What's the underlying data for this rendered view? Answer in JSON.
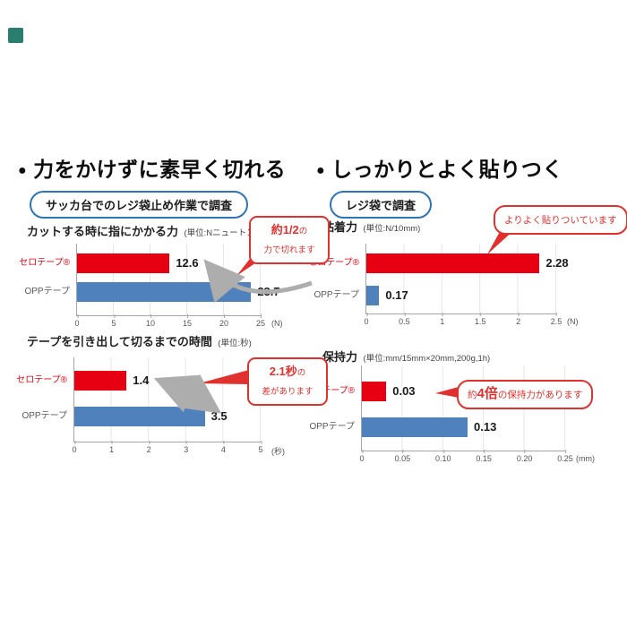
{
  "colors": {
    "red": "#e60012",
    "blue": "#4f81bd",
    "bubble_red": "#e0312e",
    "badge_border": "#2e75b6",
    "arrow_gray": "#adadad",
    "corner_teal": "#2a7e70"
  },
  "sections": [
    {
      "bullet": "●",
      "heading": "力をかけずに素早く切れる",
      "badge": "サッカ台でのレジ袋止め作業で調査"
    },
    {
      "bullet": "●",
      "heading": "しっかりとよく貼りつく",
      "badge": "レジ袋で調査"
    }
  ],
  "chart_data": [
    {
      "type": "bar",
      "orientation": "horizontal",
      "title": "カットする時に指にかかる力",
      "unit": "(単位:Nニュートン)",
      "categories": [
        "セロテープ®",
        "OPPテープ"
      ],
      "values": [
        12.6,
        23.7
      ],
      "value_labels": [
        "12.6",
        "23.7"
      ],
      "bar_colors": [
        "#e60012",
        "#4f81bd"
      ],
      "xlim": [
        0,
        25
      ],
      "xticks": [
        "0",
        "5",
        "10",
        "15",
        "20",
        "25"
      ],
      "axis_unit": "(N)",
      "grid": true,
      "annotation": {
        "prefix": "",
        "em": "約1/2",
        "suffix": "の",
        "line2": "力で切れます"
      }
    },
    {
      "type": "bar",
      "orientation": "horizontal",
      "title": "テープを引き出して切るまでの時間",
      "unit": "(単位:秒)",
      "categories": [
        "セロテープ®",
        "OPPテープ"
      ],
      "values": [
        1.4,
        3.5
      ],
      "value_labels": [
        "1.4",
        "3.5"
      ],
      "bar_colors": [
        "#e60012",
        "#4f81bd"
      ],
      "xlim": [
        0,
        5
      ],
      "xticks": [
        "0",
        "1",
        "2",
        "3",
        "4",
        "5"
      ],
      "axis_unit": "(秒)",
      "grid": true,
      "annotation": {
        "prefix": "",
        "em": "2.1秒",
        "suffix": "の",
        "line2": "差があります"
      }
    },
    {
      "type": "bar",
      "orientation": "horizontal",
      "title": "粘着力",
      "unit": "(単位:N/10mm)",
      "categories": [
        "セロテープ®",
        "OPPテープ"
      ],
      "values": [
        2.28,
        0.17
      ],
      "value_labels": [
        "2.28",
        "0.17"
      ],
      "bar_colors": [
        "#e60012",
        "#4f81bd"
      ],
      "xlim": [
        0,
        2.5
      ],
      "xticks": [
        "0",
        "0.5",
        "1",
        "1.5",
        "2",
        "2.5"
      ],
      "axis_unit": "(N)",
      "grid": true,
      "annotation": {
        "prefix": "よりよく貼りついています",
        "em": "",
        "suffix": "",
        "line2": ""
      }
    },
    {
      "type": "bar",
      "orientation": "horizontal",
      "title": "保持力",
      "unit": "(単位:mm/15mm×20mm,200g,1h)",
      "categories": [
        "セロテープ®",
        "OPPテープ"
      ],
      "values": [
        0.03,
        0.13
      ],
      "value_labels": [
        "0.03",
        "0.13"
      ],
      "bar_colors": [
        "#e60012",
        "#4f81bd"
      ],
      "xlim": [
        0,
        0.25
      ],
      "xticks": [
        "0",
        "0.05",
        "0.10",
        "0.15",
        "0.20",
        "0.25"
      ],
      "axis_unit": "(mm)",
      "grid": true,
      "annotation": {
        "prefix": "約",
        "em": "4倍",
        "suffix": "の保持力があります",
        "line2": ""
      }
    }
  ]
}
